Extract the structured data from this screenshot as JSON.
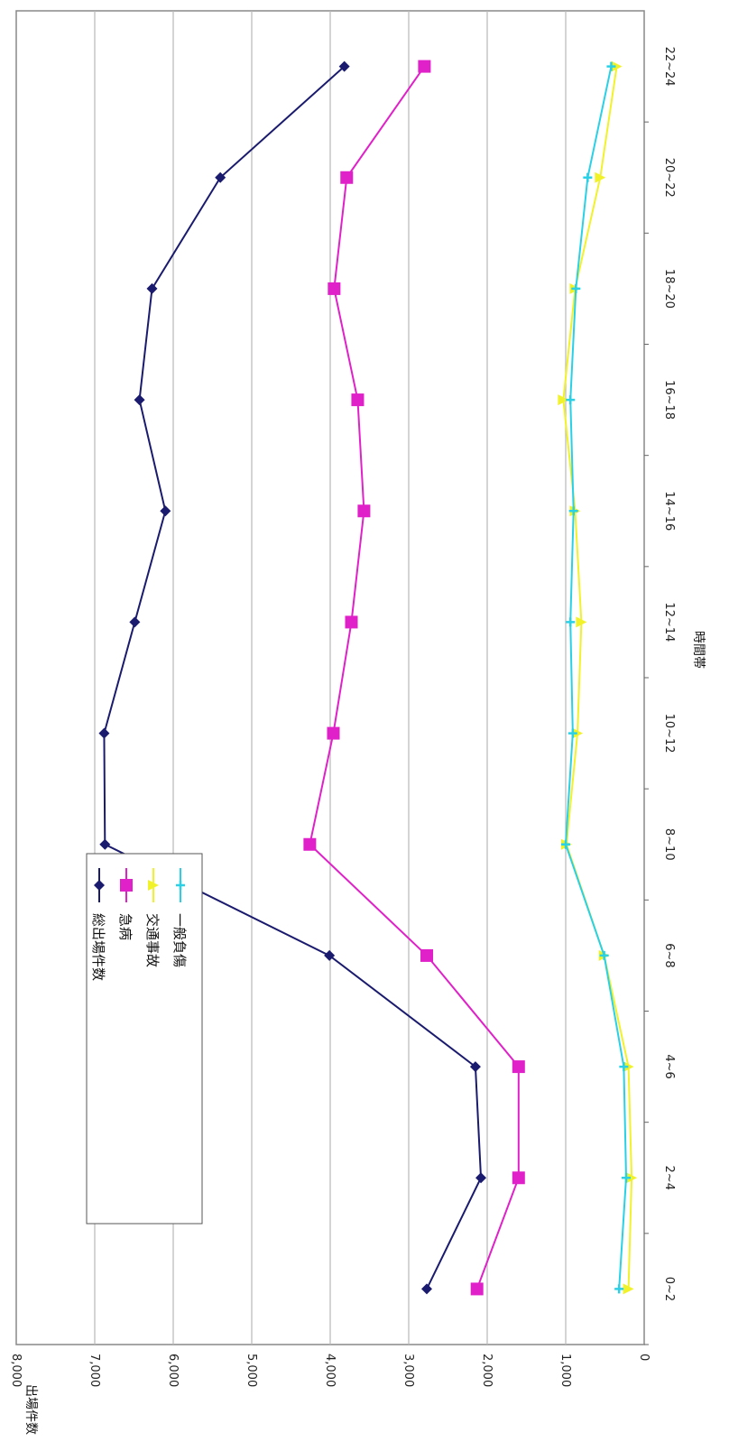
{
  "chart_data": {
    "type": "line",
    "orientation": "rotated-90-clockwise",
    "categories": [
      "0~2",
      "2~4",
      "4~6",
      "6~8",
      "8~10",
      "10~12",
      "12~14",
      "14~16",
      "16~18",
      "18~20",
      "20~22",
      "22~24"
    ],
    "xlabel": "時間帯",
    "ylabel": "出場件数",
    "ylim": [
      0,
      8000
    ],
    "yticks": [
      "0",
      "1,000",
      "2,000",
      "3,000",
      "4,000",
      "5,000",
      "6,000",
      "7,000",
      "8,000"
    ],
    "ytick_values": [
      0,
      1000,
      2000,
      3000,
      4000,
      5000,
      6000,
      7000,
      8000
    ],
    "grid": true,
    "legend_position": "bottom-left",
    "series": [
      {
        "name": "総出場件数",
        "color": "#1a1a6e",
        "marker": "diamond",
        "values": [
          2770,
          2080,
          2150,
          4010,
          6870,
          6880,
          6490,
          6100,
          6430,
          6270,
          5400,
          3820
        ]
      },
      {
        "name": "急病",
        "color": "#e020c8",
        "marker": "square",
        "values": [
          2130,
          1600,
          1600,
          2770,
          4260,
          3960,
          3730,
          3570,
          3650,
          3950,
          3790,
          2800
        ]
      },
      {
        "name": "交通事故",
        "color": "#f2f22a",
        "marker": "triangle",
        "values": [
          200,
          160,
          200,
          510,
          990,
          850,
          800,
          880,
          1030,
          880,
          560,
          350
        ]
      },
      {
        "name": "一般負傷",
        "color": "#2ad0e6",
        "marker": "cross",
        "values": [
          320,
          230,
          260,
          510,
          1000,
          910,
          940,
          900,
          940,
          870,
          720,
          420
        ]
      }
    ]
  }
}
